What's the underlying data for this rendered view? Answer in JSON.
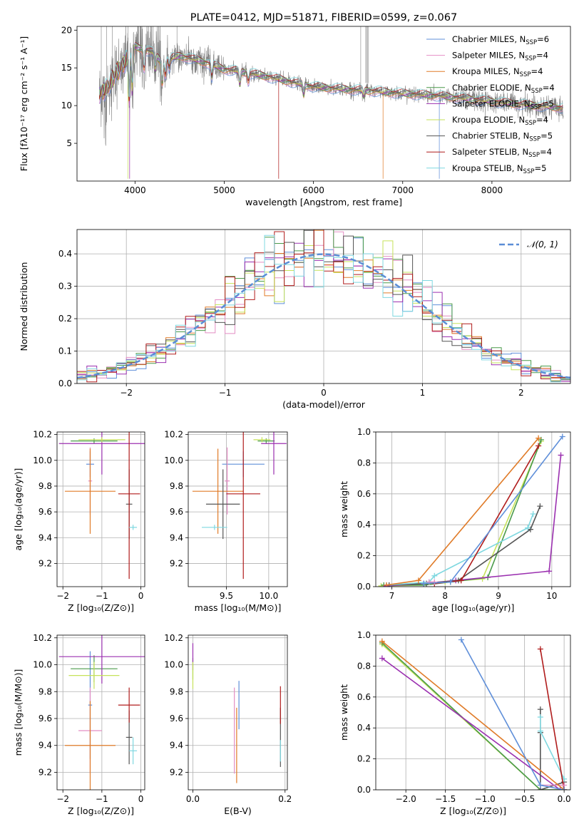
{
  "colors": {
    "chabrier_miles": "#5f8fd9",
    "salpeter_miles": "#e48ec4",
    "kroupa_miles": "#e07b28",
    "chabrier_elodie": "#4a9a4a",
    "salpeter_elodie": "#9b30b0",
    "kroupa_elodie": "#c6e25a",
    "chabrier_stelib": "#555555",
    "salpeter_stelib": "#b01c1c",
    "kroupa_stelib": "#7fd8e0",
    "data": "#808080",
    "normal": "#5b8ed6"
  },
  "chart_data": [
    {
      "type": "line",
      "title": "PLATE=0412, MJD=51871, FIBERID=0599, z=0.067",
      "xlabel": "wavelength [Angstrom, rest frame]",
      "ylabel": "Flux [fλ10⁻¹⁷ erg cm⁻² s⁻¹ A⁻¹]",
      "xlim": [
        3350,
        8880
      ],
      "ylim": [
        0,
        20.5
      ],
      "xticks": [
        4000,
        5000,
        6000,
        7000,
        8000
      ],
      "yticks": [
        5,
        10,
        15,
        20
      ],
      "legend_position": "top-right",
      "legend": [
        {
          "label": "Chabrier MILES, N",
          "sub": "SSP",
          "suffix": "=6"
        },
        {
          "label": "Salpeter MILES, N",
          "sub": "SSP",
          "suffix": "=4"
        },
        {
          "label": "Kroupa MILES, N",
          "sub": "SSP",
          "suffix": "=4"
        },
        {
          "label": "Chabrier ELODIE, N",
          "sub": "SSP",
          "suffix": "=4"
        },
        {
          "label": "Salpeter ELODIE, N",
          "sub": "SSP",
          "suffix": "=5"
        },
        {
          "label": "Kroupa ELODIE, N",
          "sub": "SSP",
          "suffix": "=4"
        },
        {
          "label": "Chabrier STELIB, N",
          "sub": "SSP",
          "suffix": "=5"
        },
        {
          "label": "Salpeter STELIB, N",
          "sub": "SSP",
          "suffix": "=4"
        },
        {
          "label": "Kroupa STELIB, N",
          "sub": "SSP",
          "suffix": "=5"
        }
      ],
      "continuum": {
        "x": [
          3600,
          3700,
          3800,
          3900,
          4000,
          4100,
          4200,
          4300,
          4500,
          4800,
          5000,
          5200,
          5500,
          5800,
          6000,
          6300,
          6600,
          7000,
          7400,
          7800,
          8200,
          8500,
          8800
        ],
        "y": [
          11.5,
          12.5,
          14.5,
          16.0,
          17.8,
          17.5,
          17.0,
          15.8,
          16.6,
          15.7,
          14.8,
          14.5,
          13.8,
          13.0,
          12.5,
          12.2,
          12.0,
          11.6,
          11.3,
          10.8,
          10.3,
          10.0,
          9.7
        ]
      }
    },
    {
      "type": "line",
      "xlabel": "(data-model)/error",
      "ylabel": "Normed distribution",
      "xlim": [
        -2.5,
        2.5
      ],
      "ylim": [
        0,
        0.475
      ],
      "xticks": [
        -2,
        -1,
        0,
        1,
        2
      ],
      "yticks": [
        0.0,
        0.1,
        0.2,
        0.3,
        0.4
      ],
      "legend_position": "top-right",
      "legend": [
        {
          "label": "𝒩(0, 1)"
        }
      ],
      "normal_curve": {
        "mean": 0,
        "sigma": 1
      }
    },
    {
      "type": "scatter",
      "xlabel": "Z [log₁₀(Z/Z⊙)]",
      "ylabel": "age  [log₁₀(age/yr)]",
      "xlim": [
        -2.15,
        0.1
      ],
      "ylim": [
        9.02,
        10.22
      ],
      "xticks": [
        -2,
        -1,
        0
      ],
      "yticks": [
        9.2,
        9.4,
        9.6,
        9.8,
        10.0,
        10.2
      ],
      "points": [
        {
          "s": "chabrier_miles",
          "x": -1.3,
          "y": 9.97,
          "xe": 0.1,
          "ye": 0.1
        },
        {
          "s": "salpeter_miles",
          "x": -1.3,
          "y": 9.84,
          "xe": 0.05,
          "ye": 0.26
        },
        {
          "s": "kroupa_miles",
          "x": -1.3,
          "y": 9.76,
          "xe": 0.65,
          "ye": 0.33
        },
        {
          "s": "chabrier_elodie",
          "x": -1.2,
          "y": 10.15,
          "xe": 0.6,
          "ye": 0.02
        },
        {
          "s": "salpeter_elodie",
          "x": -1.0,
          "y": 10.13,
          "xe": 1.1,
          "ye": 0.24
        },
        {
          "s": "kroupa_elodie",
          "x": -1.0,
          "y": 10.16,
          "xe": 0.6,
          "ye": 0.02
        },
        {
          "s": "chabrier_stelib",
          "x": -0.3,
          "y": 9.66,
          "xe": 0.08,
          "ye": 0.27
        },
        {
          "s": "salpeter_stelib",
          "x": -0.3,
          "y": 9.74,
          "xe": 0.28,
          "ye": 0.66
        },
        {
          "s": "kroupa_stelib",
          "x": -0.2,
          "y": 9.48,
          "xe": 0.1,
          "ye": 0.02
        }
      ]
    },
    {
      "type": "scatter",
      "xlabel": "mass [log₁₀(M/M⊙)]",
      "ylabel": "",
      "xlim": [
        9.05,
        10.22
      ],
      "ylim": [
        9.02,
        10.22
      ],
      "xticks": [
        9.5,
        10.0
      ],
      "yticks": [
        9.2,
        9.4,
        9.6,
        9.8,
        10.0,
        10.2
      ],
      "points": [
        {
          "s": "chabrier_miles",
          "x": 9.7,
          "y": 9.97,
          "xe": 0.25,
          "ye": 0.1
        },
        {
          "s": "salpeter_miles",
          "x": 9.51,
          "y": 9.84,
          "xe": 0.03,
          "ye": 0.26
        },
        {
          "s": "kroupa_miles",
          "x": 9.4,
          "y": 9.76,
          "xe": 0.3,
          "ye": 0.33
        },
        {
          "s": "chabrier_elodie",
          "x": 9.97,
          "y": 10.15,
          "xe": 0.1,
          "ye": 0.02
        },
        {
          "s": "salpeter_elodie",
          "x": 10.06,
          "y": 10.13,
          "xe": 0.15,
          "ye": 0.24
        },
        {
          "s": "kroupa_elodie",
          "x": 9.92,
          "y": 10.16,
          "xe": 0.1,
          "ye": 0.02
        },
        {
          "s": "chabrier_stelib",
          "x": 9.46,
          "y": 9.66,
          "xe": 0.2,
          "ye": 0.27
        },
        {
          "s": "salpeter_stelib",
          "x": 9.7,
          "y": 9.74,
          "xe": 0.2,
          "ye": 0.66
        },
        {
          "s": "kroupa_stelib",
          "x": 9.36,
          "y": 9.48,
          "xe": 0.15,
          "ye": 0.02
        }
      ]
    },
    {
      "type": "line",
      "xlabel": "age  [log₁₀(age/yr)]",
      "ylabel": "mass weight",
      "xlim": [
        6.7,
        10.35
      ],
      "ylim": [
        0,
        1.0
      ],
      "xticks": [
        7,
        8,
        9,
        10
      ],
      "yticks": [
        0.0,
        0.2,
        0.4,
        0.6,
        0.8,
        1.0
      ],
      "series": [
        {
          "s": "kroupa_elodie",
          "x": [
            6.8,
            7.6,
            8.0,
            8.7,
            9.8
          ],
          "y": [
            0.005,
            0.01,
            0.03,
            0.05,
            0.94
          ]
        },
        {
          "s": "chabrier_elodie",
          "x": [
            6.85,
            7.6,
            8.1,
            8.8,
            9.8
          ],
          "y": [
            0.01,
            0.01,
            0.03,
            0.06,
            0.95
          ]
        },
        {
          "s": "salpeter_elodie",
          "x": [
            6.9,
            7.6,
            8.2,
            9.95,
            10.17
          ],
          "y": [
            0.005,
            0.02,
            0.04,
            0.1,
            0.85
          ]
        },
        {
          "s": "chabrier_stelib",
          "x": [
            6.95,
            7.65,
            8.25,
            9.6,
            9.78
          ],
          "y": [
            0.01,
            0.02,
            0.04,
            0.37,
            0.52
          ]
        },
        {
          "s": "kroupa_stelib",
          "x": [
            6.9,
            7.7,
            7.8,
            9.55,
            9.65
          ],
          "y": [
            0.01,
            0.03,
            0.07,
            0.38,
            0.47
          ]
        },
        {
          "s": "salpeter_stelib",
          "x": [
            7.8,
            8.3,
            9.75
          ],
          "y": [
            0.02,
            0.04,
            0.91
          ]
        },
        {
          "s": "salpeter_miles",
          "x": [
            7.7,
            7.8
          ],
          "y": [
            0.03,
            0.03
          ]
        },
        {
          "s": "kroupa_miles",
          "x": [
            6.9,
            7.5,
            9.75
          ],
          "y": [
            0.01,
            0.04,
            0.96
          ]
        },
        {
          "s": "chabrier_miles",
          "x": [
            7.6,
            8.1,
            10.2
          ],
          "y": [
            0.02,
            0.03,
            0.97
          ]
        }
      ]
    },
    {
      "type": "scatter",
      "xlabel": "Z [log₁₀(Z/Z⊙)]",
      "ylabel": "mass [log₁₀(M/M⊙)]",
      "xlim": [
        -2.15,
        0.1
      ],
      "ylim": [
        9.07,
        10.22
      ],
      "xticks": [
        -2,
        -1,
        0
      ],
      "yticks": [
        9.2,
        9.4,
        9.6,
        9.8,
        10.0,
        10.2
      ],
      "points": [
        {
          "s": "chabrier_miles",
          "x": -1.3,
          "y": 9.7,
          "xe": 0.05,
          "ye": 0.4
        },
        {
          "s": "salpeter_miles",
          "x": -1.3,
          "y": 9.51,
          "xe": 0.3,
          "ye": 0.32
        },
        {
          "s": "kroupa_miles",
          "x": -1.3,
          "y": 9.4,
          "xe": 0.65,
          "ye": 0.33
        },
        {
          "s": "chabrier_elodie",
          "x": -1.2,
          "y": 9.97,
          "xe": 0.6,
          "ye": 0.1
        },
        {
          "s": "salpeter_elodie",
          "x": -1.0,
          "y": 10.06,
          "xe": 1.1,
          "ye": 0.2
        },
        {
          "s": "kroupa_elodie",
          "x": -1.2,
          "y": 9.92,
          "xe": 0.65,
          "ye": 0.1
        },
        {
          "s": "chabrier_stelib",
          "x": -0.3,
          "y": 9.46,
          "xe": 0.08,
          "ye": 0.2
        },
        {
          "s": "salpeter_stelib",
          "x": -0.3,
          "y": 9.7,
          "xe": 0.28,
          "ye": 0.13
        },
        {
          "s": "kroupa_stelib",
          "x": -0.2,
          "y": 9.36,
          "xe": 0.1,
          "ye": 0.1
        }
      ]
    },
    {
      "type": "scatter",
      "xlabel": "E(B-V)",
      "ylabel": "",
      "xlim": [
        -0.01,
        0.205
      ],
      "ylim": [
        9.07,
        10.22
      ],
      "xticks": [
        0.0,
        0.2
      ],
      "yticks": [
        9.2,
        9.4,
        9.6,
        9.8,
        10.0,
        10.2
      ],
      "points": [
        {
          "s": "chabrier_miles",
          "x": 0.1,
          "y": 9.7,
          "xe": 0.0,
          "ye": 0.18
        },
        {
          "s": "salpeter_miles",
          "x": 0.09,
          "y": 9.51,
          "xe": 0.0,
          "ye": 0.32
        },
        {
          "s": "kroupa_miles",
          "x": 0.095,
          "y": 9.4,
          "xe": 0.0,
          "ye": 0.28
        },
        {
          "s": "chabrier_elodie",
          "x": 0.0,
          "y": 9.97,
          "xe": 0.0,
          "ye": 0.08
        },
        {
          "s": "salpeter_elodie",
          "x": 0.0,
          "y": 10.06,
          "xe": 0.0,
          "ye": 0.1
        },
        {
          "s": "kroupa_elodie",
          "x": 0.0,
          "y": 9.92,
          "xe": 0.0,
          "ye": 0.1
        },
        {
          "s": "chabrier_stelib",
          "x": 0.19,
          "y": 9.46,
          "xe": 0.0,
          "ye": 0.22
        },
        {
          "s": "salpeter_stelib",
          "x": 0.19,
          "y": 9.7,
          "xe": 0.0,
          "ye": 0.14
        },
        {
          "s": "kroupa_stelib",
          "x": 0.19,
          "y": 9.36,
          "xe": 0.0,
          "ye": 0.08
        }
      ]
    },
    {
      "type": "line",
      "xlabel": "Z [log₁₀(Z/Z⊙)]",
      "ylabel": "mass weight",
      "xlim": [
        -2.38,
        0.08
      ],
      "ylim": [
        0,
        1.0
      ],
      "xticks": [
        -2.0,
        -1.5,
        -1.0,
        -0.5,
        0.0
      ],
      "yticks": [
        0.0,
        0.2,
        0.4,
        0.6,
        0.8,
        1.0
      ],
      "series": [
        {
          "s": "kroupa_elodie",
          "x": [
            -2.3,
            -0.3,
            0.0
          ],
          "y": [
            0.94,
            0.0,
            0.0
          ]
        },
        {
          "s": "chabrier_elodie",
          "x": [
            -2.3,
            -0.3,
            0.0
          ],
          "y": [
            0.95,
            0.0,
            0.0
          ]
        },
        {
          "s": "salpeter_elodie",
          "x": [
            -2.3,
            -0.05,
            0.0
          ],
          "y": [
            0.85,
            0.0,
            0.0
          ]
        },
        {
          "s": "chabrier_stelib",
          "x": [
            -0.3,
            -0.3,
            -0.3,
            0.0,
            0.0
          ],
          "y": [
            0.52,
            0.37,
            0.0,
            0.05,
            0.0
          ]
        },
        {
          "s": "kroupa_stelib",
          "x": [
            -0.3,
            -0.3,
            0.0
          ],
          "y": [
            0.47,
            0.38,
            0.07
          ]
        },
        {
          "s": "salpeter_stelib",
          "x": [
            -0.3,
            0.0
          ],
          "y": [
            0.91,
            0.0
          ]
        },
        {
          "s": "salpeter_miles",
          "x": [
            -0.3,
            0.0
          ],
          "y": [
            0.03,
            0.03
          ]
        },
        {
          "s": "kroupa_miles",
          "x": [
            -2.3,
            0.0
          ],
          "y": [
            0.96,
            0.0
          ]
        },
        {
          "s": "chabrier_miles",
          "x": [
            -1.3,
            -0.3,
            0.0
          ],
          "y": [
            0.97,
            0.03,
            0.0
          ]
        }
      ]
    }
  ]
}
